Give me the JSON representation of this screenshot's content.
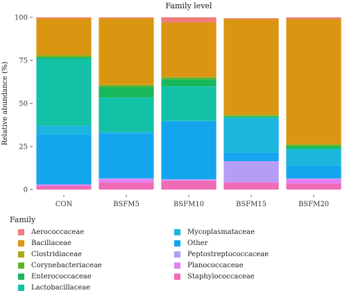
{
  "chart_data": {
    "type": "bar",
    "stacked": true,
    "title": "Family level",
    "xlabel": "",
    "ylabel": "Relative abundance (%)",
    "ylim": [
      0,
      100
    ],
    "yticks": [
      "0",
      "25",
      "50",
      "75",
      "100"
    ],
    "categories": [
      "CON",
      "BSFM5",
      "BSFM10",
      "BSFM15",
      "BSFM20"
    ],
    "legend_title": "Family",
    "legend_position": "bottom",
    "grid": false,
    "series": [
      {
        "name": "Staphylococcaceae",
        "color": "#F06BB6",
        "values": [
          2.0,
          4.0,
          5.0,
          4.0,
          3.5
        ]
      },
      {
        "name": "Planococcaceae",
        "color": "#E37FF0",
        "values": [
          0.8,
          2.0,
          0.5,
          0.5,
          2.5
        ]
      },
      {
        "name": "Peptostreptococcaceae",
        "color": "#B59CF5",
        "values": [
          0.2,
          0.5,
          0.5,
          12.0,
          0.5
        ]
      },
      {
        "name": "Other",
        "color": "#14A5EF",
        "values": [
          29.0,
          26.0,
          33.5,
          5.0,
          7.5
        ]
      },
      {
        "name": "Mycoplasmataceae",
        "color": "#1CB5DE",
        "values": [
          5.0,
          1.0,
          0.5,
          20.0,
          9.0
        ]
      },
      {
        "name": "Lactobacillaceae",
        "color": "#13C1A6",
        "values": [
          39.0,
          20.0,
          20.0,
          0.5,
          1.0
        ]
      },
      {
        "name": "Enterococcaceae",
        "color": "#19B75C",
        "values": [
          0.8,
          6.0,
          4.0,
          0.5,
          1.0
        ]
      },
      {
        "name": "Corynebacteriaceae",
        "color": "#5FB32B",
        "values": [
          0.6,
          1.0,
          1.0,
          0.5,
          1.0
        ]
      },
      {
        "name": "Clostridiaceae",
        "color": "#A9A81E",
        "values": [
          1.0,
          0.5,
          0.5,
          0.5,
          0.5
        ]
      },
      {
        "name": "Bacillaceae",
        "color": "#DA9610",
        "values": [
          21.0,
          38.5,
          31.5,
          55.5,
          72.5
        ]
      },
      {
        "name": "Aerococcaceae",
        "color": "#F07C7C",
        "values": [
          0.6,
          0.5,
          3.0,
          0.5,
          1.0
        ]
      }
    ],
    "legend_order": [
      "Aerococcaceae",
      "Bacillaceae",
      "Clostridiaceae",
      "Corynebacteriaceae",
      "Enterococcaceae",
      "Lactobacillaceae",
      "Mycoplasmataceae",
      "Other",
      "Peptostreptococcaceae",
      "Planococcaceae",
      "Staphylococcaceae"
    ]
  }
}
